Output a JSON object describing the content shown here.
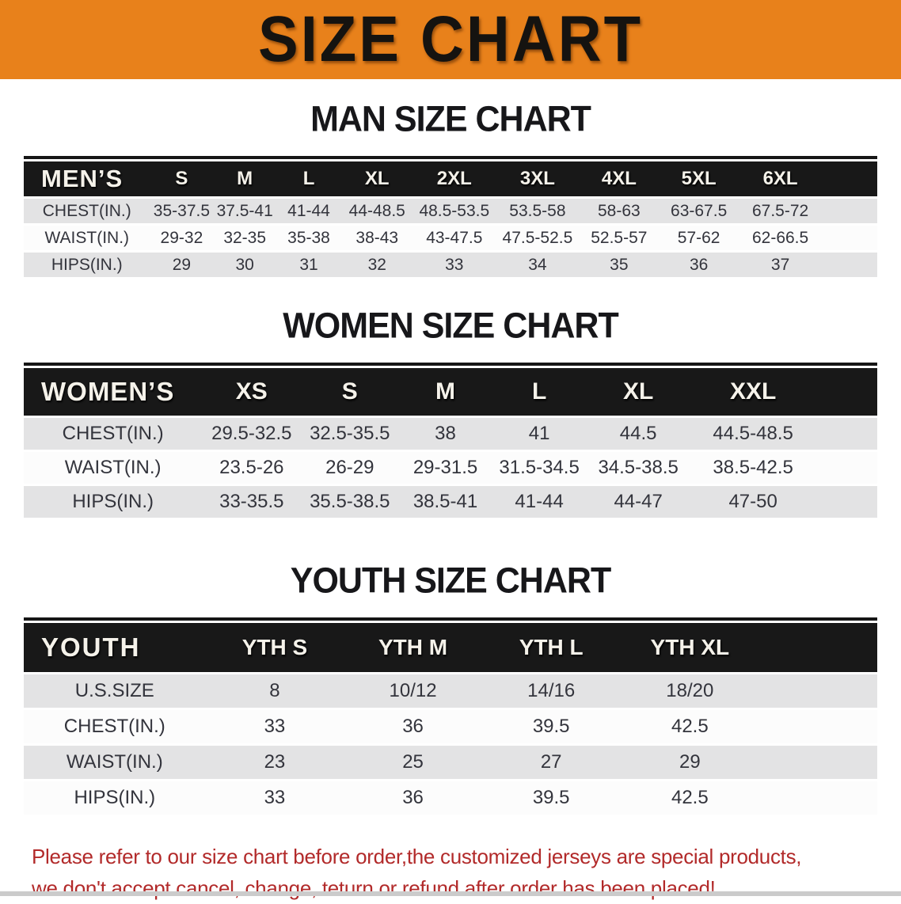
{
  "banner": {
    "title": "SIZE CHART",
    "bg_color": "#e8811b",
    "text_color": "#151310"
  },
  "colors": {
    "table_header_bg": "#181818",
    "row_shaded": "#e3e3e4",
    "row_plain": "#fcfcfc",
    "note_red": "#b22a2a"
  },
  "tables": {
    "men": {
      "heading": "MAN SIZE CHART",
      "header": [
        "MEN’S",
        "S",
        "M",
        "L",
        "XL",
        "2XL",
        "3XL",
        "4XL",
        "5XL",
        "6XL"
      ],
      "rows": [
        {
          "label": "CHEST(IN.)",
          "values": [
            "35-37.5",
            "37.5-41",
            "41-44",
            "44-48.5",
            "48.5-53.5",
            "53.5-58",
            "58-63",
            "63-67.5",
            "67.5-72"
          ]
        },
        {
          "label": "WAIST(IN.)",
          "values": [
            "29-32",
            "32-35",
            "35-38",
            "38-43",
            "43-47.5",
            "47.5-52.5",
            "52.5-57",
            "57-62",
            "62-66.5"
          ]
        },
        {
          "label": "HIPS(IN.)",
          "values": [
            "29",
            "30",
            "31",
            "32",
            "33",
            "34",
            "35",
            "36",
            "37"
          ]
        }
      ]
    },
    "women": {
      "heading": "WOMEN SIZE CHART",
      "header": [
        "WOMEN’S",
        "XS",
        "S",
        "M",
        "L",
        "XL",
        "XXL"
      ],
      "rows": [
        {
          "label": "CHEST(IN.)",
          "values": [
            "29.5-32.5",
            "32.5-35.5",
            "38",
            "41",
            "44.5",
            "44.5-48.5"
          ]
        },
        {
          "label": "WAIST(IN.)",
          "values": [
            "23.5-26",
            "26-29",
            "29-31.5",
            "31.5-34.5",
            "34.5-38.5",
            "38.5-42.5"
          ]
        },
        {
          "label": "HIPS(IN.)",
          "values": [
            "33-35.5",
            "35.5-38.5",
            "38.5-41",
            "41-44",
            "44-47",
            "47-50"
          ]
        }
      ]
    },
    "youth": {
      "heading": "YOUTH SIZE CHART",
      "header": [
        "YOUTH",
        "YTH S",
        "YTH M",
        "YTH L",
        "YTH XL"
      ],
      "rows": [
        {
          "label": "U.S.SIZE",
          "values": [
            "8",
            "10/12",
            "14/16",
            "18/20"
          ]
        },
        {
          "label": "CHEST(IN.)",
          "values": [
            "33",
            "36",
            "39.5",
            "42.5"
          ]
        },
        {
          "label": "WAIST(IN.)",
          "values": [
            "23",
            "25",
            "27",
            "29"
          ]
        },
        {
          "label": "HIPS(IN.)",
          "values": [
            "33",
            "36",
            "39.5",
            "42.5"
          ]
        }
      ]
    }
  },
  "footer": {
    "line1": "Please refer to our size chart before order,the customized jerseys are special products,",
    "line2": "we don't accept cancel, change, teturn or refund after order has been placed!"
  }
}
